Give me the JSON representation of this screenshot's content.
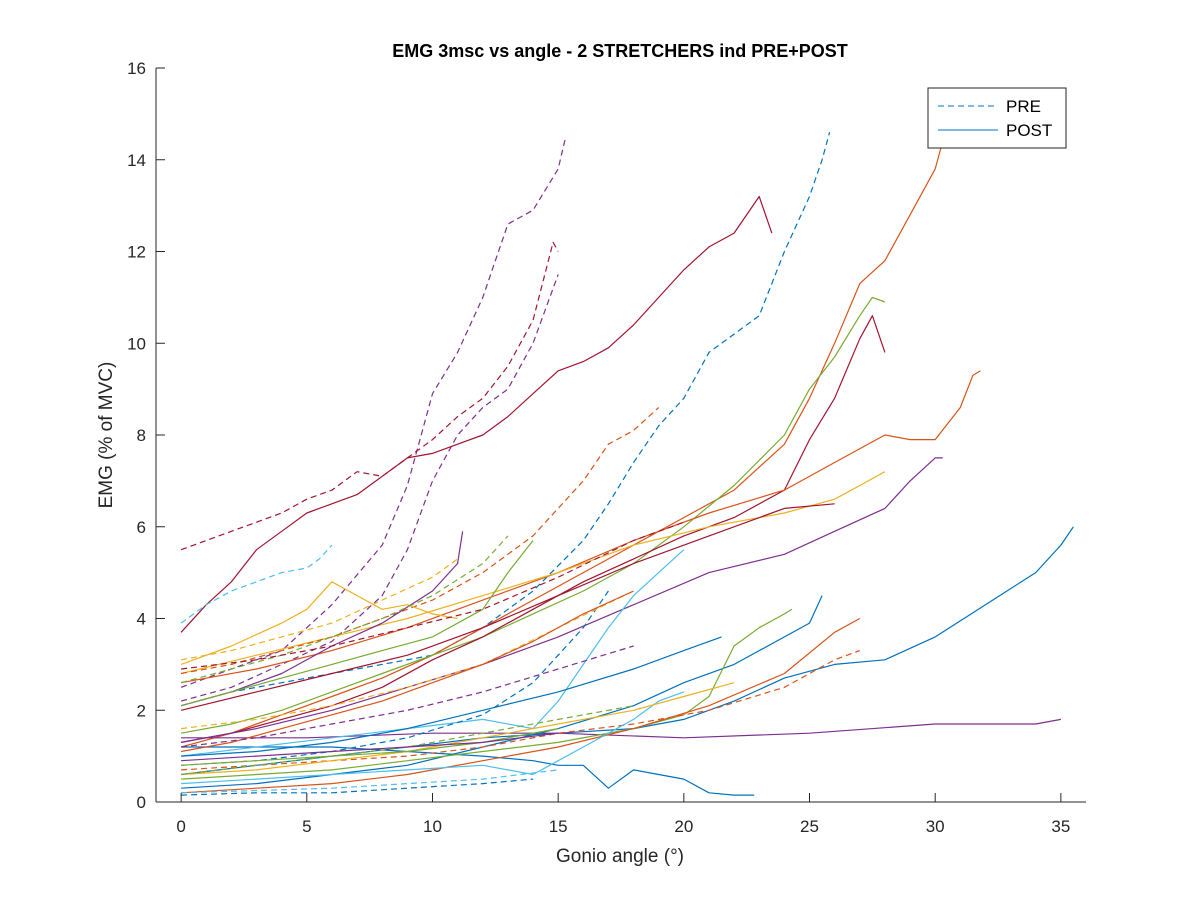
{
  "chart_data": {
    "type": "line",
    "title": "EMG 3msc vs angle - 2 STRETCHERS ind PRE+POST",
    "xlabel": "Gonio angle (°)",
    "ylabel": "EMG (% of MVC)",
    "xlim": [
      -1,
      36
    ],
    "ylim": [
      0,
      16
    ],
    "xticks": [
      0,
      5,
      10,
      15,
      20,
      25,
      30,
      35
    ],
    "yticks": [
      0,
      2,
      4,
      6,
      8,
      10,
      12,
      14,
      16
    ],
    "grid": false,
    "legend": {
      "placement": "top-right",
      "entries": [
        {
          "label": "PRE",
          "style": "dashed",
          "color": "#0072BD"
        },
        {
          "label": "POST",
          "style": "solid",
          "color": "#0072BD"
        }
      ]
    },
    "series": [
      {
        "style": "dashed",
        "color": "#7E2F8E",
        "x": [
          0,
          2,
          4,
          6,
          8,
          9,
          10,
          11,
          12,
          13,
          14,
          15,
          15.3
        ],
        "y": [
          2.5,
          2.9,
          3.3,
          4.3,
          5.6,
          6.9,
          8.9,
          9.8,
          11.0,
          12.6,
          12.9,
          13.8,
          14.5
        ]
      },
      {
        "style": "dashed",
        "color": "#A2142F",
        "x": [
          0,
          2,
          4,
          5,
          6,
          7,
          8,
          9,
          10,
          11,
          12,
          13,
          14,
          14.8,
          15
        ],
        "y": [
          5.5,
          5.9,
          6.3,
          6.6,
          6.8,
          7.2,
          7.1,
          7.5,
          7.9,
          8.4,
          8.8,
          9.5,
          10.5,
          12.2,
          12.0
        ]
      },
      {
        "style": "dashed",
        "color": "#7E2F8E",
        "x": [
          0,
          2,
          4,
          6,
          8,
          9,
          10,
          11,
          12,
          13,
          14,
          15
        ],
        "y": [
          2.2,
          2.5,
          3.0,
          3.5,
          4.5,
          5.5,
          7.0,
          8.0,
          8.6,
          9.0,
          10.0,
          11.5
        ]
      },
      {
        "style": "solid",
        "color": "#A2142F",
        "x": [
          0,
          1,
          2,
          3,
          4,
          5,
          6,
          7,
          8,
          9,
          10,
          11,
          12,
          13,
          14,
          15,
          16,
          17,
          18,
          19,
          20,
          21,
          22,
          23,
          23.5
        ],
        "y": [
          3.7,
          4.3,
          4.8,
          5.5,
          5.9,
          6.3,
          6.5,
          6.7,
          7.1,
          7.5,
          7.6,
          7.8,
          8.0,
          8.4,
          8.9,
          9.4,
          9.6,
          9.9,
          10.4,
          11.0,
          11.6,
          12.1,
          12.4,
          13.2,
          12.4
        ]
      },
      {
        "style": "dashed",
        "color": "#0072BD",
        "x": [
          0,
          2,
          4,
          6,
          8,
          10,
          12,
          14,
          16,
          17,
          18,
          19,
          20,
          21,
          22,
          23,
          24,
          25,
          25.5,
          25.8
        ],
        "y": [
          2.1,
          2.4,
          2.6,
          2.8,
          3.0,
          3.2,
          3.8,
          4.6,
          5.7,
          6.5,
          7.4,
          8.2,
          8.8,
          9.8,
          10.2,
          10.6,
          12.0,
          13.2,
          14.0,
          14.6
        ]
      },
      {
        "style": "solid",
        "color": "#D95319",
        "x": [
          0,
          2,
          4,
          6,
          8,
          10,
          12,
          14,
          16,
          18,
          20,
          22,
          24,
          25,
          26,
          27,
          28,
          29,
          30,
          30.3
        ],
        "y": [
          1.2,
          1.5,
          1.9,
          2.3,
          2.7,
          3.2,
          3.8,
          4.4,
          5.0,
          5.6,
          6.2,
          6.8,
          7.8,
          8.8,
          10.0,
          11.3,
          11.8,
          12.8,
          13.8,
          14.4
        ]
      },
      {
        "style": "solid",
        "color": "#77AC30",
        "x": [
          0,
          2,
          4,
          6,
          8,
          10,
          12,
          14,
          16,
          18,
          20,
          22,
          24,
          25,
          26,
          27,
          27.5,
          28
        ],
        "y": [
          1.5,
          1.7,
          2.0,
          2.4,
          2.8,
          3.2,
          3.6,
          4.1,
          4.6,
          5.2,
          6.0,
          6.9,
          8.0,
          9.0,
          9.7,
          10.6,
          11.0,
          10.9
        ]
      },
      {
        "style": "solid",
        "color": "#A2142F",
        "x": [
          0,
          2,
          4,
          6,
          8,
          10,
          12,
          14,
          16,
          18,
          20,
          22,
          24,
          25,
          26,
          27,
          27.5,
          28
        ],
        "y": [
          1.3,
          1.5,
          1.8,
          2.1,
          2.5,
          3.1,
          3.6,
          4.2,
          4.8,
          5.3,
          5.8,
          6.2,
          6.8,
          7.9,
          8.8,
          10.1,
          10.6,
          9.8
        ]
      },
      {
        "style": "solid",
        "color": "#D95319",
        "x": [
          0,
          3,
          6,
          9,
          12,
          15,
          18,
          21,
          24,
          26,
          28,
          29,
          30,
          31,
          31.5,
          31.8
        ],
        "y": [
          2.6,
          2.9,
          3.3,
          3.8,
          4.4,
          5.0,
          5.7,
          6.3,
          6.8,
          7.4,
          8.0,
          7.9,
          7.9,
          8.6,
          9.3,
          9.4
        ]
      },
      {
        "style": "solid",
        "color": "#EDB120",
        "x": [
          0,
          3,
          6,
          9,
          12,
          15,
          18,
          21,
          24,
          26,
          27,
          28
        ],
        "y": [
          2.8,
          3.2,
          3.6,
          4.0,
          4.5,
          5.0,
          5.6,
          6.0,
          6.3,
          6.6,
          6.9,
          7.2
        ]
      },
      {
        "style": "solid",
        "color": "#7E2F8E",
        "x": [
          0,
          3,
          6,
          9,
          12,
          15,
          18,
          21,
          24,
          26,
          28,
          29,
          30,
          30.3
        ],
        "y": [
          1.3,
          1.6,
          2.0,
          2.5,
          3.0,
          3.6,
          4.3,
          5.0,
          5.4,
          5.9,
          6.4,
          7.0,
          7.5,
          7.5
        ]
      },
      {
        "style": "dashed",
        "color": "#D95319",
        "x": [
          0,
          2,
          4,
          6,
          8,
          10,
          12,
          14,
          16,
          17,
          18,
          19
        ],
        "y": [
          2.8,
          3.0,
          3.3,
          3.6,
          4.0,
          4.4,
          5.0,
          5.8,
          7.0,
          7.8,
          8.1,
          8.6
        ]
      },
      {
        "style": "solid",
        "color": "#0072BD",
        "x": [
          0,
          3,
          6,
          9,
          12,
          15,
          18,
          20,
          22,
          24,
          26,
          28,
          30,
          32,
          34,
          35,
          35.5
        ],
        "y": [
          0.6,
          0.8,
          1.0,
          1.2,
          1.4,
          1.5,
          1.6,
          1.8,
          2.2,
          2.7,
          3.0,
          3.1,
          3.6,
          4.3,
          5.0,
          5.6,
          6.0
        ]
      },
      {
        "style": "solid",
        "color": "#7E2F8E",
        "x": [
          0,
          5,
          10,
          15,
          20,
          25,
          30,
          32,
          34,
          35
        ],
        "y": [
          1.4,
          1.4,
          1.5,
          1.5,
          1.4,
          1.5,
          1.7,
          1.7,
          1.7,
          1.8
        ]
      },
      {
        "style": "solid",
        "color": "#0072BD",
        "x": [
          0,
          3,
          6,
          9,
          12,
          14,
          15,
          16,
          17,
          18,
          19,
          20,
          21,
          22,
          22.8
        ],
        "y": [
          1.2,
          1.2,
          1.2,
          1.1,
          1.0,
          0.9,
          0.8,
          0.8,
          0.3,
          0.7,
          0.6,
          0.5,
          0.2,
          0.15,
          0.15
        ]
      },
      {
        "style": "solid",
        "color": "#0072BD",
        "x": [
          0,
          3,
          6,
          9,
          12,
          15,
          18,
          20,
          22,
          24,
          25,
          25.5
        ],
        "y": [
          0.3,
          0.4,
          0.6,
          0.8,
          1.2,
          1.6,
          2.1,
          2.6,
          3.0,
          3.6,
          3.9,
          4.5
        ]
      },
      {
        "style": "solid",
        "color": "#77AC30",
        "x": [
          0,
          3,
          6,
          9,
          12,
          15,
          18,
          20,
          21,
          22,
          23,
          24,
          24.3
        ],
        "y": [
          0.5,
          0.6,
          0.7,
          0.9,
          1.1,
          1.3,
          1.6,
          1.9,
          2.3,
          3.4,
          3.8,
          4.1,
          4.2
        ]
      },
      {
        "style": "solid",
        "color": "#D95319",
        "x": [
          0,
          3,
          6,
          9,
          12,
          15,
          18,
          21,
          24,
          26,
          27
        ],
        "y": [
          0.2,
          0.3,
          0.4,
          0.6,
          0.9,
          1.2,
          1.6,
          2.1,
          2.8,
          3.7,
          4.0
        ]
      },
      {
        "style": "dashed",
        "color": "#D95319",
        "x": [
          0,
          3,
          6,
          9,
          12,
          15,
          18,
          21,
          24,
          26,
          27
        ],
        "y": [
          0.7,
          0.8,
          0.9,
          1.0,
          1.2,
          1.5,
          1.7,
          2.0,
          2.5,
          3.1,
          3.3
        ]
      },
      {
        "style": "solid",
        "color": "#4DBEEE",
        "x": [
          0,
          3,
          6,
          9,
          12,
          14,
          15,
          16,
          17,
          18,
          19,
          20
        ],
        "y": [
          1.0,
          1.2,
          1.4,
          1.6,
          1.8,
          1.6,
          2.2,
          3.0,
          3.8,
          4.5,
          5.0,
          5.5
        ]
      },
      {
        "style": "solid",
        "color": "#4DBEEE",
        "x": [
          0,
          3,
          6,
          9,
          12,
          14,
          15,
          16,
          17,
          18,
          19,
          20
        ],
        "y": [
          0.4,
          0.5,
          0.6,
          0.7,
          0.8,
          0.6,
          0.9,
          1.2,
          1.5,
          1.8,
          2.2,
          2.4
        ]
      },
      {
        "style": "dashed",
        "color": "#4DBEEE",
        "x": [
          0,
          1,
          2,
          3,
          4,
          5,
          5.5,
          6
        ],
        "y": [
          3.9,
          4.3,
          4.6,
          4.8,
          5.0,
          5.1,
          5.3,
          5.6
        ]
      },
      {
        "style": "solid",
        "color": "#EDB120",
        "x": [
          0,
          2,
          4,
          5,
          6,
          7,
          8,
          9,
          10,
          11
        ],
        "y": [
          3.0,
          3.4,
          3.9,
          4.2,
          4.8,
          4.5,
          4.2,
          4.3,
          4.1,
          4.0
        ]
      },
      {
        "style": "dashed",
        "color": "#EDB120",
        "x": [
          0,
          2,
          4,
          6,
          8,
          10,
          11
        ],
        "y": [
          3.1,
          3.3,
          3.6,
          3.9,
          4.4,
          4.9,
          5.3
        ]
      },
      {
        "style": "solid",
        "color": "#7E2F8E",
        "x": [
          0,
          2,
          4,
          6,
          8,
          10,
          11,
          11.2
        ],
        "y": [
          2.1,
          2.4,
          2.8,
          3.4,
          3.9,
          4.6,
          5.2,
          5.9
        ]
      },
      {
        "style": "dashed",
        "color": "#77AC30",
        "x": [
          0,
          2,
          4,
          6,
          8,
          10,
          12,
          13
        ],
        "y": [
          2.6,
          2.9,
          3.2,
          3.6,
          4.0,
          4.5,
          5.2,
          5.8
        ]
      },
      {
        "style": "solid",
        "color": "#77AC30",
        "x": [
          0,
          2,
          4,
          6,
          8,
          10,
          12,
          13,
          14
        ],
        "y": [
          2.1,
          2.4,
          2.7,
          3.0,
          3.3,
          3.6,
          4.2,
          5.0,
          5.7
        ]
      },
      {
        "style": "solid",
        "color": "#A2142F",
        "x": [
          0,
          3,
          6,
          9,
          12,
          15,
          18,
          21,
          24,
          26
        ],
        "y": [
          2.0,
          2.4,
          2.8,
          3.2,
          3.8,
          4.5,
          5.2,
          5.8,
          6.4,
          6.5
        ]
      },
      {
        "style": "dashed",
        "color": "#A2142F",
        "x": [
          0,
          3,
          6,
          9,
          12,
          15,
          18,
          20
        ],
        "y": [
          2.9,
          3.1,
          3.4,
          3.8,
          4.2,
          4.9,
          5.7,
          6.1
        ]
      },
      {
        "style": "solid",
        "color": "#0072BD",
        "x": [
          0,
          3,
          6,
          9,
          12,
          15,
          18,
          20,
          21.5
        ],
        "y": [
          1.0,
          1.1,
          1.3,
          1.6,
          2.0,
          2.4,
          2.9,
          3.3,
          3.6
        ]
      },
      {
        "style": "dashed",
        "color": "#0072BD",
        "x": [
          0,
          3,
          6,
          9,
          12,
          14,
          16,
          17
        ],
        "y": [
          0.8,
          0.9,
          1.1,
          1.4,
          1.9,
          2.6,
          3.8,
          4.6
        ]
      },
      {
        "style": "solid",
        "color": "#EDB120",
        "x": [
          0,
          3,
          6,
          9,
          12,
          15,
          18,
          20,
          22
        ],
        "y": [
          0.6,
          0.7,
          0.9,
          1.1,
          1.4,
          1.7,
          2.0,
          2.3,
          2.6
        ]
      },
      {
        "style": "dashed",
        "color": "#EDB120",
        "x": [
          0,
          3,
          6,
          9,
          12,
          15,
          18
        ],
        "y": [
          1.6,
          1.8,
          2.1,
          2.5,
          3.0,
          3.8,
          4.6
        ]
      },
      {
        "style": "solid",
        "color": "#D95319",
        "x": [
          0,
          2,
          4,
          6,
          8,
          10,
          12,
          14,
          16,
          18
        ],
        "y": [
          1.1,
          1.3,
          1.6,
          1.9,
          2.2,
          2.6,
          3.0,
          3.5,
          4.1,
          4.6
        ]
      },
      {
        "style": "dashed",
        "color": "#7E2F8E",
        "x": [
          0,
          3,
          6,
          9,
          12,
          15,
          18
        ],
        "y": [
          1.2,
          1.4,
          1.7,
          2.0,
          2.4,
          2.9,
          3.4
        ]
      },
      {
        "style": "dashed",
        "color": "#77AC30",
        "x": [
          0,
          3,
          6,
          9,
          12,
          15,
          18
        ],
        "y": [
          0.6,
          0.8,
          1.0,
          1.2,
          1.5,
          1.8,
          2.1
        ]
      },
      {
        "style": "solid",
        "color": "#77AC30",
        "x": [
          0,
          3,
          6,
          9,
          12,
          15
        ],
        "y": [
          0.8,
          0.9,
          1.0,
          1.1,
          1.3,
          1.6
        ]
      },
      {
        "style": "solid",
        "color": "#7E2F8E",
        "x": [
          0,
          3,
          6,
          9,
          12,
          15
        ],
        "y": [
          0.9,
          1.0,
          1.1,
          1.2,
          1.3,
          1.5
        ]
      },
      {
        "style": "dashed",
        "color": "#4DBEEE",
        "x": [
          0,
          3,
          6,
          9,
          12,
          15
        ],
        "y": [
          0.2,
          0.25,
          0.3,
          0.4,
          0.5,
          0.7
        ]
      },
      {
        "style": "dashed",
        "color": "#0072BD",
        "x": [
          0,
          3,
          6,
          9,
          12,
          14
        ],
        "y": [
          0.15,
          0.2,
          0.2,
          0.3,
          0.4,
          0.5
        ]
      }
    ]
  }
}
